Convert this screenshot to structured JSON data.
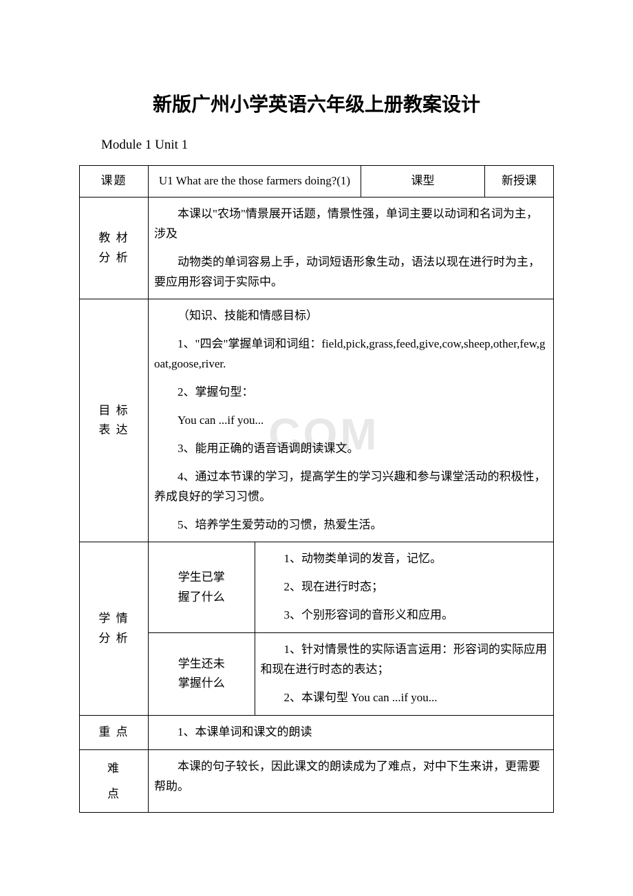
{
  "watermark": ".COM",
  "title": "新版广州小学英语六年级上册教案设计",
  "subtitle": "Module 1 Unit 1",
  "header_row": {
    "topic_label": "课题",
    "topic_value": "U1 What are the those farmers doing?(1)",
    "type_label": "课型",
    "type_value": "新授课"
  },
  "rows": {
    "material": {
      "label": "教 材\n分 析",
      "p1": "本课以\"农场\"情景展开话题，情景性强，单词主要以动词和名词为主，涉及",
      "p2": "动物类的单词容易上手，动词短语形象生动，语法以现在进行时为主，要应用形容词于实际中。"
    },
    "objectives": {
      "label": "目 标\n表 达",
      "p1": "（知识、技能和情感目标）",
      "p2": "1、\"四会\"掌握单词和词组：field,pick,grass,feed,give,cow,sheep,other,few,goat,goose,river.",
      "p3": "2、掌握句型：",
      "p4": "You can ...if you...",
      "p5": "3、能用正确的语音语调朗读课文。",
      "p6": "4、通过本节课的学习，提高学生的学习兴趣和参与课堂活动的积极性，养成良好的学习习惯。",
      "p7": "5、培养学生爱劳动的习惯，热爱生活。"
    },
    "analysis": {
      "label": "学 情\n分 析",
      "known": {
        "label": "学生已掌\n握了什么",
        "p1": "1、动物类单词的发音，记忆。",
        "p2": "2、现在进行时态；",
        "p3": "3、个别形容词的音形义和应用。"
      },
      "unknown": {
        "label": "学生还未\n掌握什么",
        "p1": "1、针对情景性的实际语言运用：形容词的实际应用和现在进行时态的表达；",
        "p2": "2、本课句型 You can ...if you..."
      }
    },
    "key": {
      "label": "重 点",
      "p1": "1、本课单词和课文的朗读"
    },
    "difficulty": {
      "label": "难\n点",
      "p1": "本课的句子较长，因此课文的朗读成为了难点，对中下生来讲，更需要帮助。"
    }
  }
}
